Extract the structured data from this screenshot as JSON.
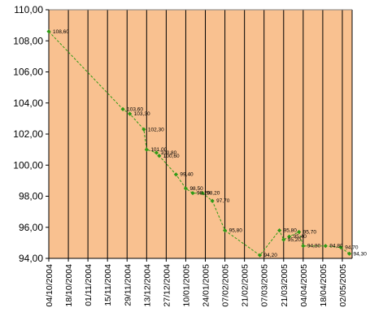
{
  "chart_data": {
    "type": "line",
    "title": "",
    "xlabel": "",
    "ylabel": "",
    "ylim": [
      94,
      110
    ],
    "y_ticks": [
      "94,00",
      "96,00",
      "98,00",
      "100,00",
      "102,00",
      "104,00",
      "106,00",
      "108,00",
      "110,00"
    ],
    "x_ticks": [
      "04/10/2004",
      "18/10/2004",
      "01/11/2004",
      "15/11/2004",
      "29/11/2004",
      "13/12/2004",
      "27/12/2004",
      "10/01/2005",
      "24/01/2005",
      "07/02/2005",
      "21/02/2005",
      "07/03/2005",
      "21/03/2005",
      "04/04/2005",
      "18/04/2005",
      "02/05/2005"
    ],
    "xlim": [
      "2004-10-04",
      "2005-05-09"
    ],
    "grid": "vertical lines at each x tick",
    "colors": {
      "plot_background": "#f9c190",
      "grid": "#000000",
      "line": "#2f9a16",
      "marker": "#2f9a16"
    },
    "series": [
      {
        "values": [
          {
            "x": "2004-10-04",
            "y": 108.6,
            "label": "108,60"
          },
          {
            "x": "2004-11-26",
            "y": 103.6,
            "label": "103,60"
          },
          {
            "x": "2004-12-01",
            "y": 103.3,
            "label": "103,30"
          },
          {
            "x": "2004-12-11",
            "y": 102.3,
            "label": "102,30"
          },
          {
            "x": "2004-12-13",
            "y": 101.0,
            "label": "101,00"
          },
          {
            "x": "2004-12-20",
            "y": 100.8,
            "label": "100,80"
          },
          {
            "x": "2004-12-22",
            "y": 100.6,
            "label": "100,60"
          },
          {
            "x": "2005-01-03",
            "y": 99.4,
            "label": "99,40"
          },
          {
            "x": "2005-01-10",
            "y": 98.5,
            "label": "98,50"
          },
          {
            "x": "2005-01-15",
            "y": 98.2,
            "label": "98,20"
          },
          {
            "x": "2005-01-22",
            "y": 98.2,
            "label": "98,20"
          },
          {
            "x": "2005-01-29",
            "y": 97.7,
            "label": "97,70"
          },
          {
            "x": "2005-02-07",
            "y": 95.8,
            "label": "95,80"
          },
          {
            "x": "2005-03-04",
            "y": 94.2,
            "label": "94,20"
          },
          {
            "x": "2005-03-18",
            "y": 95.8,
            "label": "95,80"
          },
          {
            "x": "2005-03-21",
            "y": 95.2,
            "label": "95,20"
          },
          {
            "x": "2005-03-25",
            "y": 95.4,
            "label": "95,40"
          },
          {
            "x": "2005-04-01",
            "y": 95.7,
            "label": "95,70"
          },
          {
            "x": "2005-04-04",
            "y": 94.8,
            "label": "94,80"
          },
          {
            "x": "2005-04-20",
            "y": 94.8,
            "label": "94,80"
          },
          {
            "x": "2005-05-01",
            "y": 94.7,
            "label": "94,70"
          },
          {
            "x": "2005-05-07",
            "y": 94.3,
            "label": "94,30"
          }
        ]
      }
    ]
  }
}
